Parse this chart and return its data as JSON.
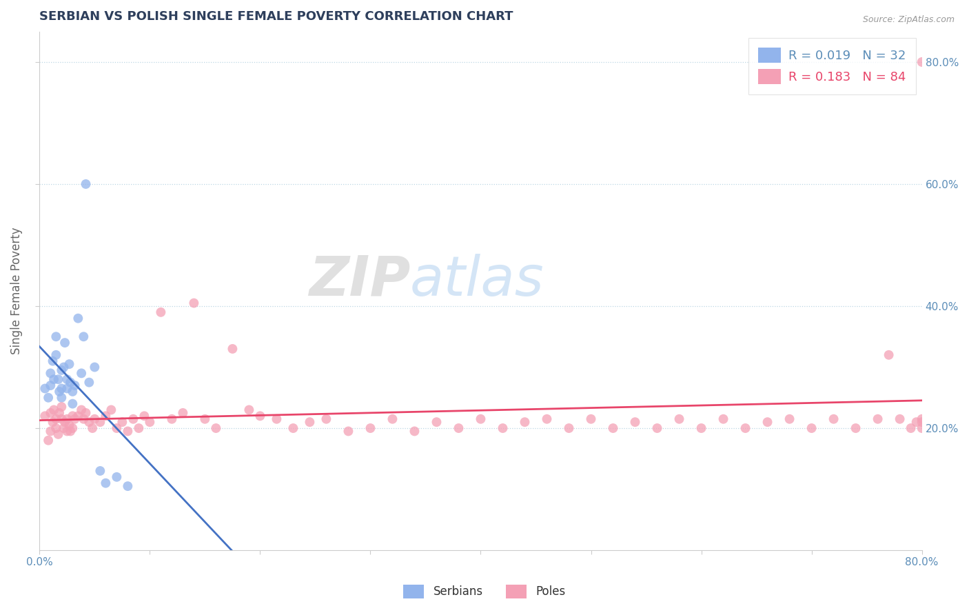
{
  "title": "SERBIAN VS POLISH SINGLE FEMALE POVERTY CORRELATION CHART",
  "source": "Source: ZipAtlas.com",
  "ylabel": "Single Female Poverty",
  "xlim": [
    0.0,
    0.8
  ],
  "ylim": [
    0.0,
    0.85
  ],
  "yticks": [
    0.2,
    0.4,
    0.6,
    0.8
  ],
  "serbian_R": 0.019,
  "serbian_N": 32,
  "polish_R": 0.183,
  "polish_N": 84,
  "serbian_color": "#92B4EC",
  "polish_color": "#F4A0B5",
  "serbian_line_color": "#4472C4",
  "polish_line_color": "#E8456A",
  "title_color": "#2E3F5C",
  "axis_color": "#5B8DB8",
  "background_color": "#FFFFFF",
  "srb_x": [
    0.005,
    0.008,
    0.01,
    0.01,
    0.012,
    0.013,
    0.015,
    0.015,
    0.017,
    0.018,
    0.02,
    0.02,
    0.02,
    0.022,
    0.023,
    0.025,
    0.025,
    0.027,
    0.028,
    0.03,
    0.03,
    0.032,
    0.035,
    0.038,
    0.04,
    0.042,
    0.045,
    0.05,
    0.055,
    0.06,
    0.07,
    0.08
  ],
  "srb_y": [
    0.265,
    0.25,
    0.29,
    0.27,
    0.31,
    0.28,
    0.35,
    0.32,
    0.28,
    0.26,
    0.295,
    0.265,
    0.25,
    0.3,
    0.34,
    0.28,
    0.265,
    0.305,
    0.275,
    0.26,
    0.24,
    0.27,
    0.38,
    0.29,
    0.35,
    0.6,
    0.275,
    0.3,
    0.13,
    0.11,
    0.12,
    0.105
  ],
  "pol_x": [
    0.005,
    0.008,
    0.01,
    0.01,
    0.012,
    0.013,
    0.015,
    0.015,
    0.017,
    0.018,
    0.02,
    0.02,
    0.022,
    0.023,
    0.025,
    0.025,
    0.027,
    0.028,
    0.03,
    0.03,
    0.032,
    0.035,
    0.038,
    0.04,
    0.042,
    0.045,
    0.048,
    0.05,
    0.055,
    0.06,
    0.065,
    0.07,
    0.075,
    0.08,
    0.085,
    0.09,
    0.095,
    0.1,
    0.11,
    0.12,
    0.13,
    0.14,
    0.15,
    0.16,
    0.175,
    0.19,
    0.2,
    0.215,
    0.23,
    0.245,
    0.26,
    0.28,
    0.3,
    0.32,
    0.34,
    0.36,
    0.38,
    0.4,
    0.42,
    0.44,
    0.46,
    0.48,
    0.5,
    0.52,
    0.54,
    0.56,
    0.58,
    0.6,
    0.62,
    0.64,
    0.66,
    0.68,
    0.7,
    0.72,
    0.74,
    0.76,
    0.77,
    0.78,
    0.79,
    0.795,
    0.8,
    0.8,
    0.8,
    0.8
  ],
  "pol_y": [
    0.22,
    0.18,
    0.195,
    0.225,
    0.21,
    0.23,
    0.2,
    0.215,
    0.19,
    0.225,
    0.215,
    0.235,
    0.2,
    0.21,
    0.195,
    0.215,
    0.205,
    0.195,
    0.2,
    0.22,
    0.215,
    0.22,
    0.23,
    0.215,
    0.225,
    0.21,
    0.2,
    0.215,
    0.21,
    0.22,
    0.23,
    0.2,
    0.21,
    0.195,
    0.215,
    0.2,
    0.22,
    0.21,
    0.39,
    0.215,
    0.225,
    0.405,
    0.215,
    0.2,
    0.33,
    0.23,
    0.22,
    0.215,
    0.2,
    0.21,
    0.215,
    0.195,
    0.2,
    0.215,
    0.195,
    0.21,
    0.2,
    0.215,
    0.2,
    0.21,
    0.215,
    0.2,
    0.215,
    0.2,
    0.21,
    0.2,
    0.215,
    0.2,
    0.215,
    0.2,
    0.21,
    0.215,
    0.2,
    0.215,
    0.2,
    0.215,
    0.32,
    0.215,
    0.2,
    0.21,
    0.215,
    0.2,
    0.21,
    0.8
  ]
}
